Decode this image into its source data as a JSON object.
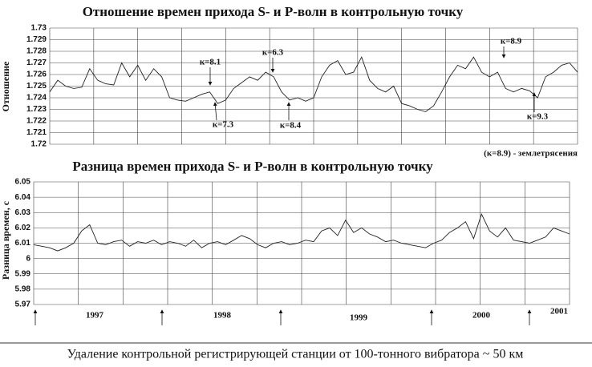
{
  "chart_data": [
    {
      "type": "line",
      "title": "Отношение времен прихода  S- и P-волн в контрольную точку",
      "ylabel": "Отношение",
      "ylim": [
        1.72,
        1.73
      ],
      "yticks": [
        1.72,
        1.721,
        1.722,
        1.723,
        1.724,
        1.725,
        1.726,
        1.727,
        1.728,
        1.729,
        1.73
      ],
      "grid": true,
      "series": [
        {
          "color": "#222222",
          "values": [
            1.7245,
            1.7255,
            1.725,
            1.7248,
            1.7249,
            1.7265,
            1.7255,
            1.7252,
            1.7251,
            1.727,
            1.7258,
            1.7268,
            1.7255,
            1.7265,
            1.7258,
            1.724,
            1.7238,
            1.7237,
            1.724,
            1.7243,
            1.7245,
            1.7235,
            1.7238,
            1.7248,
            1.7253,
            1.7258,
            1.7255,
            1.7262,
            1.7258,
            1.7245,
            1.7238,
            1.724,
            1.7237,
            1.724,
            1.7258,
            1.7268,
            1.7272,
            1.726,
            1.7262,
            1.7275,
            1.7255,
            1.7248,
            1.7245,
            1.725,
            1.7235,
            1.7233,
            1.723,
            1.7228,
            1.7233,
            1.7245,
            1.7258,
            1.7268,
            1.7265,
            1.7275,
            1.7262,
            1.7258,
            1.7262,
            1.7248,
            1.7245,
            1.7248,
            1.7246,
            1.724,
            1.7258,
            1.7262,
            1.7268,
            1.727,
            1.7262
          ]
        }
      ],
      "annotations": [
        "к=8.1",
        "к=7.3",
        "к=6.3",
        "к=8.4",
        "к=8.9",
        "к=9.3"
      ],
      "note": "(к=8.9) - землетрясения"
    },
    {
      "type": "line",
      "title": "Разница времен прихода S- и P-волн в контрольную точку",
      "ylabel": "Разница времен, с",
      "ylim": [
        5.97,
        6.05
      ],
      "yticks": [
        5.97,
        5.98,
        5.99,
        6,
        6.01,
        6.02,
        6.03,
        6.04,
        6.05
      ],
      "grid": true,
      "series": [
        {
          "color": "#222222",
          "values": [
            6.009,
            6.008,
            6.007,
            6.005,
            6.007,
            6.01,
            6.018,
            6.022,
            6.01,
            6.009,
            6.011,
            6.012,
            6.008,
            6.011,
            6.01,
            6.012,
            6.009,
            6.011,
            6.01,
            6.008,
            6.012,
            6.007,
            6.01,
            6.011,
            6.009,
            6.012,
            6.015,
            6.013,
            6.009,
            6.007,
            6.01,
            6.011,
            6.009,
            6.01,
            6.012,
            6.011,
            6.018,
            6.02,
            6.015,
            6.025,
            6.017,
            6.02,
            6.016,
            6.014,
            6.011,
            6.012,
            6.01,
            6.009,
            6.008,
            6.007,
            6.01,
            6.012,
            6.017,
            6.02,
            6.024,
            6.013,
            6.029,
            6.018,
            6.014,
            6.02,
            6.012,
            6.011,
            6.01,
            6.012,
            6.014,
            6.02,
            6.018,
            6.016
          ]
        }
      ],
      "year_labels": [
        "1997",
        "1998",
        "1999",
        "2000",
        "2001"
      ]
    }
  ],
  "caption": "Удаление контрольной регистрирующей станции от 100-тонного вибратора  ~ 50 км"
}
